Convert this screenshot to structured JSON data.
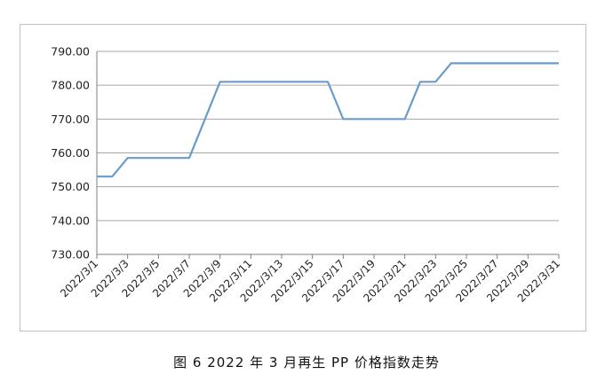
{
  "caption": "图 6  2022 年 3 月再生 PP 价格指数走势",
  "chart_data": {
    "type": "line",
    "title": "",
    "xlabel": "",
    "ylabel": "",
    "ylim": [
      730,
      790
    ],
    "yticks": [
      "730.00",
      "740.00",
      "750.00",
      "760.00",
      "770.00",
      "780.00",
      "790.00"
    ],
    "grid": true,
    "legend": "none",
    "line_color": "#6a9bcb",
    "categories": [
      "2022/3/1",
      "2022/3/2",
      "2022/3/3",
      "2022/3/4",
      "2022/3/5",
      "2022/3/6",
      "2022/3/7",
      "2022/3/8",
      "2022/3/9",
      "2022/3/10",
      "2022/3/11",
      "2022/3/12",
      "2022/3/13",
      "2022/3/14",
      "2022/3/15",
      "2022/3/16",
      "2022/3/17",
      "2022/3/18",
      "2022/3/19",
      "2022/3/20",
      "2022/3/21",
      "2022/3/22",
      "2022/3/23",
      "2022/3/24",
      "2022/3/25",
      "2022/3/26",
      "2022/3/27",
      "2022/3/28",
      "2022/3/29",
      "2022/3/30",
      "2022/3/31"
    ],
    "xtick_labels": [
      "2022/3/1",
      "2022/3/3",
      "2022/3/5",
      "2022/3/7",
      "2022/3/9",
      "2022/3/11",
      "2022/3/13",
      "2022/3/15",
      "2022/3/17",
      "2022/3/19",
      "2022/3/21",
      "2022/3/23",
      "2022/3/25",
      "2022/3/27",
      "2022/3/29",
      "2022/3/31"
    ],
    "series": [
      {
        "name": "",
        "x": [
          "2022/3/1",
          "2022/3/2",
          "2022/3/3",
          "2022/3/7",
          "2022/3/9",
          "2022/3/16",
          "2022/3/17",
          "2022/3/21",
          "2022/3/22",
          "2022/3/23",
          "2022/3/24",
          "2022/3/31"
        ],
        "values": [
          753,
          753,
          758.5,
          758.5,
          781,
          781,
          770,
          770,
          781,
          781,
          786.5,
          786.5
        ]
      }
    ]
  }
}
